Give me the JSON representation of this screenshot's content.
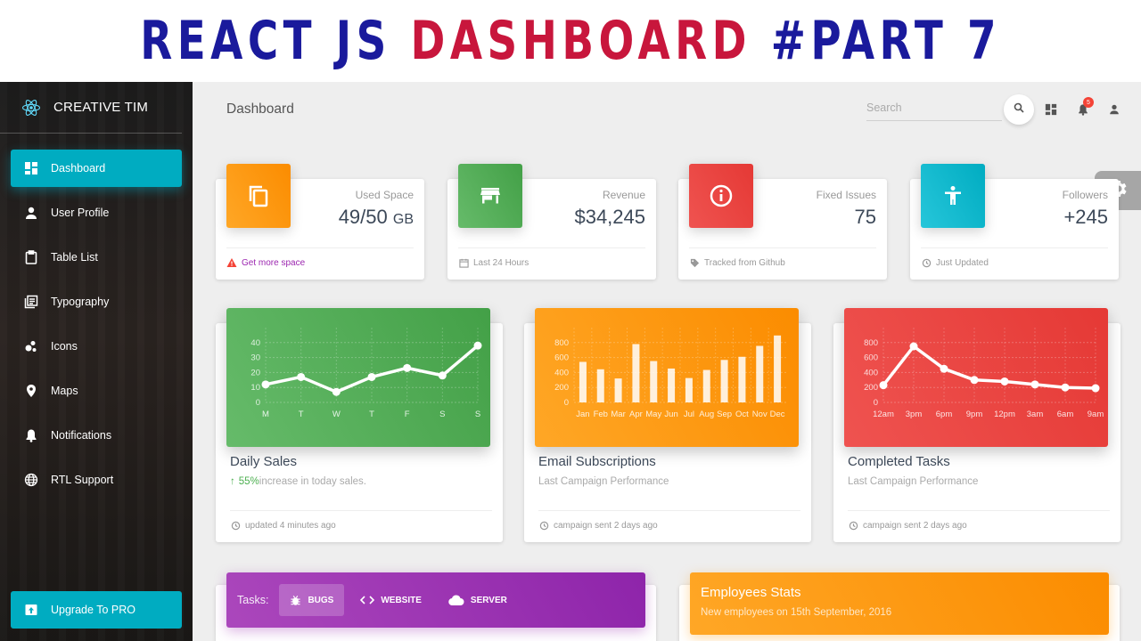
{
  "banner": {
    "part1": "REACT JS ",
    "part2": "DASHBOARD",
    "part3": " #PART 7"
  },
  "sidebar": {
    "brand": "CREATIVE TIM",
    "items": [
      {
        "label": "Dashboard",
        "icon": "dashboard-icon",
        "active": true
      },
      {
        "label": "User Profile",
        "icon": "person-icon"
      },
      {
        "label": "Table List",
        "icon": "clipboard-icon"
      },
      {
        "label": "Typography",
        "icon": "library-books-icon"
      },
      {
        "label": "Icons",
        "icon": "bubble-chart-icon"
      },
      {
        "label": "Maps",
        "icon": "location-pin-icon"
      },
      {
        "label": "Notifications",
        "icon": "bell-icon"
      },
      {
        "label": "RTL Support",
        "icon": "language-icon"
      }
    ],
    "upgrade": "Upgrade To PRO"
  },
  "header": {
    "title": "Dashboard",
    "search_placeholder": "Search",
    "notification_count": "5"
  },
  "stats": [
    {
      "label": "Used Space",
      "value": "49/50",
      "unit": "GB",
      "footer": "Get more space",
      "color": "#fb8c00",
      "icon": "content-copy-icon",
      "footer_icon": "warning-icon"
    },
    {
      "label": "Revenue",
      "value": "$34,245",
      "unit": "",
      "footer": "Last 24 Hours",
      "color": "#43a047",
      "icon": "store-icon",
      "footer_icon": "calendar-icon"
    },
    {
      "label": "Fixed Issues",
      "value": "75",
      "unit": "",
      "footer": "Tracked from Github",
      "color": "#e53935",
      "icon": "info-outline-icon",
      "footer_icon": "tag-icon"
    },
    {
      "label": "Followers",
      "value": "+245",
      "unit": "",
      "footer": "Just Updated",
      "color": "#00acc1",
      "icon": "accessibility-icon",
      "footer_icon": "update-icon"
    }
  ],
  "charts": [
    {
      "title": "Daily Sales",
      "sub_pct": "55%",
      "sub_rest": " increase in today sales.",
      "footer": "updated 4 minutes ago",
      "color": "#43a047"
    },
    {
      "title": "Email Subscriptions",
      "sub": "Last Campaign Performance",
      "footer": "campaign sent 2 days ago",
      "color": "#fb8c00"
    },
    {
      "title": "Completed Tasks",
      "sub": "Last Campaign Performance",
      "footer": "campaign sent 2 days ago",
      "color": "#e53935"
    }
  ],
  "chart_data": [
    {
      "type": "line",
      "categories": [
        "M",
        "T",
        "W",
        "T",
        "F",
        "S",
        "S"
      ],
      "values": [
        12,
        17,
        7,
        17,
        23,
        18,
        38
      ],
      "ylim": [
        0,
        50
      ],
      "yticks": [
        0,
        10,
        20,
        30,
        40
      ]
    },
    {
      "type": "bar",
      "categories": [
        "Jan",
        "Feb",
        "Mar",
        "Apr",
        "May",
        "Jun",
        "Jul",
        "Aug",
        "Sep",
        "Oct",
        "Nov",
        "Dec"
      ],
      "values": [
        542,
        443,
        320,
        780,
        553,
        453,
        326,
        434,
        568,
        610,
        756,
        895
      ],
      "ylim": [
        0,
        1000
      ],
      "yticks": [
        0,
        200,
        400,
        600,
        800
      ]
    },
    {
      "type": "line",
      "categories": [
        "12am",
        "3pm",
        "6pm",
        "9pm",
        "12pm",
        "3am",
        "6am",
        "9am"
      ],
      "values": [
        230,
        750,
        450,
        300,
        280,
        240,
        200,
        190
      ],
      "ylim": [
        0,
        1000
      ],
      "yticks": [
        0,
        200,
        400,
        600,
        800
      ]
    }
  ],
  "tasks": {
    "label": "Tasks:",
    "tabs": [
      {
        "label": "BUGS",
        "icon": "bug-icon"
      },
      {
        "label": "WEBSITE",
        "icon": "code-icon"
      },
      {
        "label": "SERVER",
        "icon": "cloud-icon"
      }
    ]
  },
  "employees": {
    "title": "Employees Stats",
    "subtitle": "New employees on 15th September, 2016"
  }
}
